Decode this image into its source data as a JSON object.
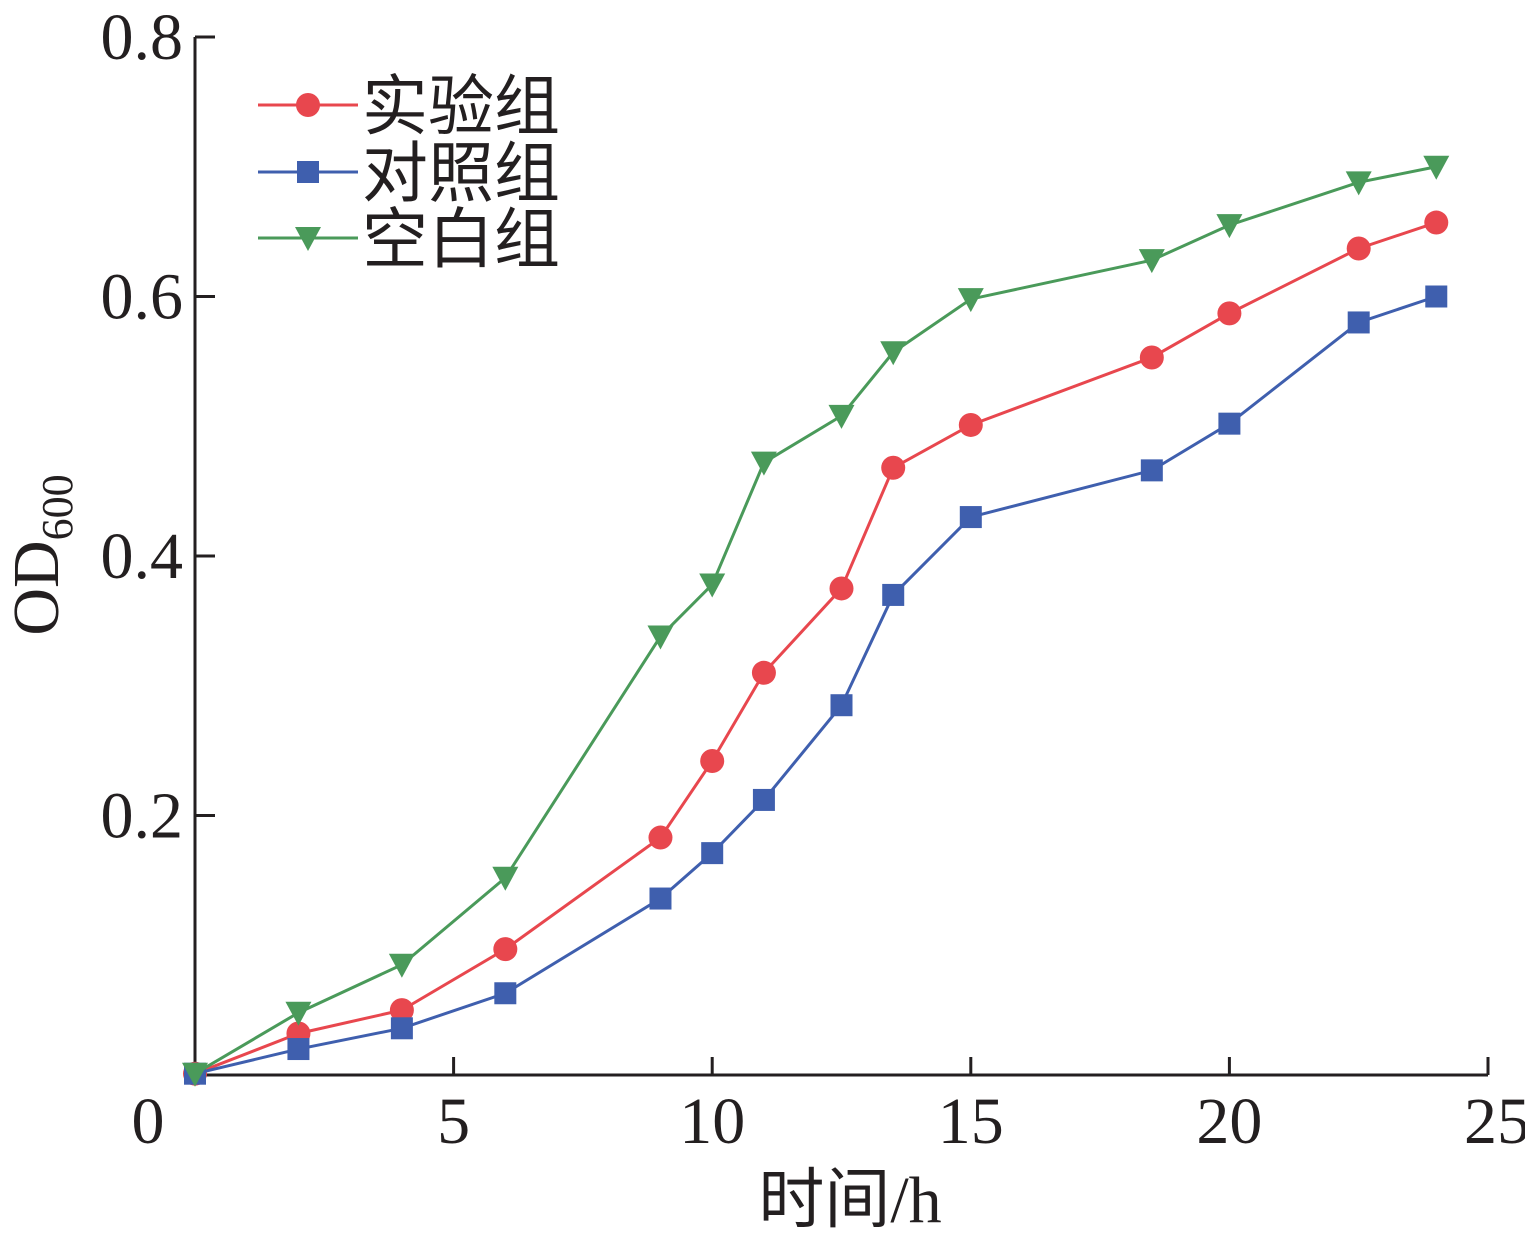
{
  "chart_data": {
    "type": "line",
    "xlabel": "时间/h",
    "ylabel_main": "OD",
    "ylabel_sub": "600",
    "xlim": [
      0,
      25
    ],
    "ylim": [
      0,
      0.8
    ],
    "xticks": [
      0,
      5,
      10,
      15,
      20,
      25
    ],
    "xtick_labels": [
      "0",
      "5",
      "10",
      "15",
      "20",
      "25"
    ],
    "yticks": [
      0.2,
      0.4,
      0.6,
      0.8
    ],
    "ytick_labels": [
      "0.2",
      "0.4",
      "0.6",
      "0.8"
    ],
    "grid": false,
    "legend_position": "top-left",
    "x": [
      0,
      2,
      4,
      6,
      9,
      10,
      11,
      12.5,
      13.5,
      15,
      18.5,
      20,
      22.5,
      24
    ],
    "series": [
      {
        "name": "实验组",
        "color": "#e8474e",
        "marker": "circle",
        "values": [
          0.001,
          0.032,
          0.05,
          0.097,
          0.183,
          0.242,
          0.31,
          0.375,
          0.468,
          0.501,
          0.553,
          0.587,
          0.637,
          0.657
        ]
      },
      {
        "name": "对照组",
        "color": "#3f5fae",
        "marker": "square",
        "values": [
          0.001,
          0.02,
          0.036,
          0.063,
          0.136,
          0.171,
          0.212,
          0.285,
          0.37,
          0.43,
          0.466,
          0.502,
          0.58,
          0.6
        ]
      },
      {
        "name": "空白组",
        "color": "#4a9a5a",
        "marker": "triangle-down",
        "values": [
          0.001,
          0.048,
          0.085,
          0.152,
          0.338,
          0.378,
          0.472,
          0.508,
          0.557,
          0.598,
          0.628,
          0.655,
          0.688,
          0.7
        ]
      }
    ]
  }
}
